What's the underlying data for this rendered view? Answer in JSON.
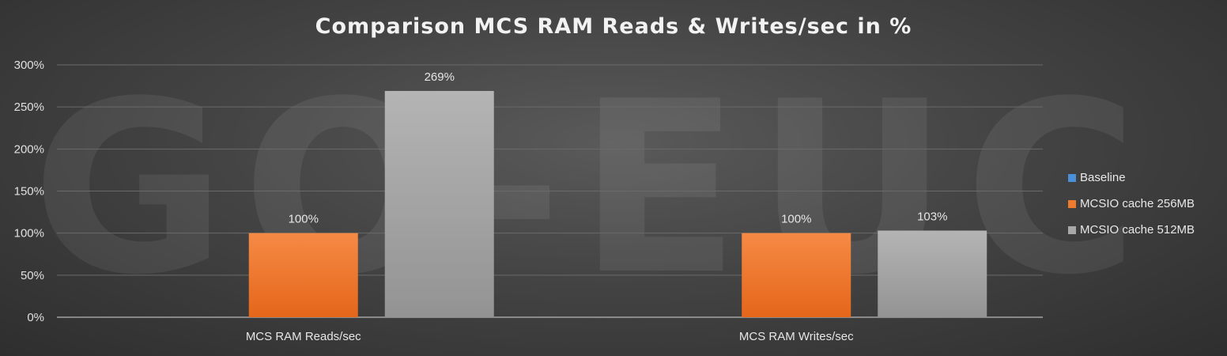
{
  "watermark": "GO-EUC",
  "colors": {
    "baseline": "#4a90d9",
    "cache256": "#ee7a2e",
    "cache512": "#a8a8a8"
  },
  "chart_data": {
    "type": "bar",
    "title": "Comparison MCS RAM Reads & Writes/sec in %",
    "categories": [
      "MCS RAM Reads/sec",
      "MCS RAM Writes/sec"
    ],
    "series": [
      {
        "name": "Baseline",
        "values": [
          0,
          0
        ],
        "labels": [
          "",
          ""
        ],
        "color": "#4a90d9"
      },
      {
        "name": "MCSIO cache 256MB",
        "values": [
          100,
          100
        ],
        "labels": [
          "100%",
          "100%"
        ],
        "color": "#ee7a2e"
      },
      {
        "name": "MCSIO cache 512MB",
        "values": [
          269,
          103
        ],
        "labels": [
          "269%",
          "103%"
        ],
        "color": "#a8a8a8"
      }
    ],
    "y_ticks": [
      "0%",
      "50%",
      "100%",
      "150%",
      "200%",
      "250%",
      "300%"
    ],
    "ylim": [
      0,
      300
    ],
    "grid": true,
    "legend_position": "right"
  }
}
